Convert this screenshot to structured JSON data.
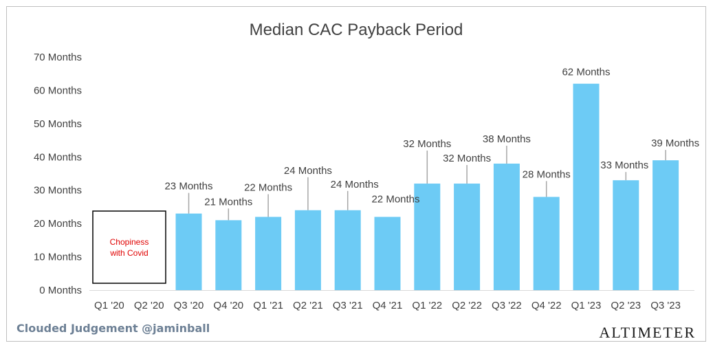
{
  "chart_data": {
    "type": "bar",
    "title": "Median CAC Payback Period",
    "categories": [
      "Q1 '20",
      "Q2 '20",
      "Q3 '20",
      "Q4 '20",
      "Q1 '21",
      "Q2 '21",
      "Q3 '21",
      "Q4 '21",
      "Q1 '22",
      "Q2 '22",
      "Q3 '22",
      "Q4 '22",
      "Q1 '23",
      "Q2 '23",
      "Q3 '23"
    ],
    "values": [
      null,
      null,
      23,
      21,
      22,
      24,
      24,
      22,
      32,
      32,
      38,
      28,
      62,
      33,
      39
    ],
    "data_labels": [
      "",
      "",
      "23 Months",
      "21 Months",
      "22 Months",
      "24 Months",
      "24 Months",
      "22 Months",
      "32 Months",
      "32 Months",
      "38 Months",
      "28 Months",
      "62 Months",
      "33 Months",
      "39 Months"
    ],
    "y_ticks": [
      "0 Months",
      "10 Months",
      "20 Months",
      "30 Months",
      "40 Months",
      "50 Months",
      "60 Months",
      "70 Months"
    ],
    "ylim": [
      0,
      70
    ],
    "bar_color": "#6dcbf5",
    "grid": false,
    "legend": "none",
    "annotation": {
      "lines": [
        "Chopiness",
        "with Covid"
      ],
      "color": "#e00000"
    }
  },
  "footer": {
    "credit": "Clouded Judgement @jaminball",
    "brand": "ALTIMETER"
  }
}
